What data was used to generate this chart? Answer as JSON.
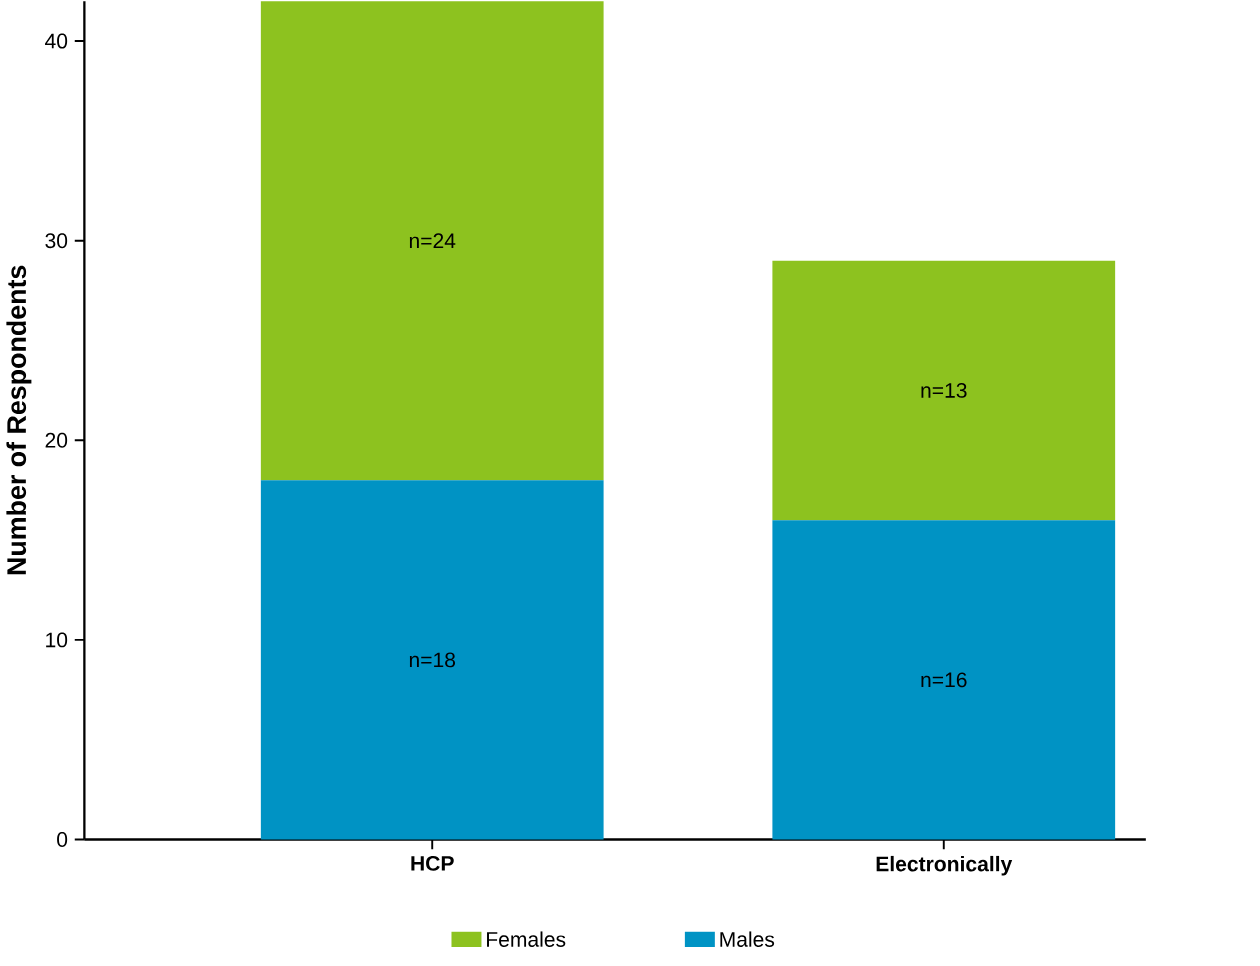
{
  "chart_data": {
    "type": "bar",
    "stacked": true,
    "categories": [
      "HCP",
      "Electronically"
    ],
    "ylabel": "Number of Respondents",
    "ylim": [
      0,
      42
    ],
    "yticks": [
      0,
      10,
      20,
      30,
      40
    ],
    "legend": "bottom",
    "grid": false,
    "series": [
      {
        "name": "Males",
        "color": "#0093c4",
        "values": [
          18,
          16
        ],
        "value_labels": [
          "n=18",
          "n=16"
        ]
      },
      {
        "name": "Females",
        "color": "#8dc21f",
        "values": [
          24,
          13
        ],
        "value_labels": [
          "n=24",
          "n=13"
        ]
      }
    ]
  }
}
